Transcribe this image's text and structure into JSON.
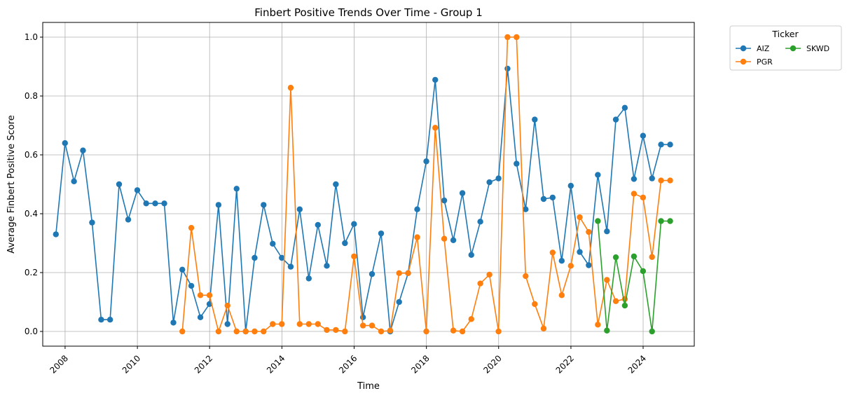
{
  "chart_data": {
    "type": "line",
    "title": "Finbert Positive Trends Over Time - Group 1",
    "xlabel": "Time",
    "ylabel": "Average Finbert Positive Score",
    "x_ticks": [
      "2008",
      "2010",
      "2012",
      "2014",
      "2016",
      "2018",
      "2020",
      "2022",
      "2024"
    ],
    "y_ticks": [
      "0.0",
      "0.2",
      "0.4",
      "0.6",
      "0.8",
      "1.0"
    ],
    "xlim": [
      "2007-05-20",
      "2025-06-01"
    ],
    "ylim": [
      -0.05,
      1.05
    ],
    "grid": true,
    "legend": {
      "title": "Ticker",
      "placement": "outside-top-right"
    },
    "series": [
      {
        "name": "AIZ",
        "color": "#1f77b4",
        "points": [
          [
            "2007-09-30",
            0.33
          ],
          [
            "2007-12-31",
            0.64
          ],
          [
            "2008-03-31",
            0.51
          ],
          [
            "2008-06-30",
            0.615
          ],
          [
            "2008-09-30",
            0.37
          ],
          [
            "2008-12-31",
            0.04
          ],
          [
            "2009-03-31",
            0.04
          ],
          [
            "2009-06-30",
            0.5
          ],
          [
            "2009-09-30",
            0.38
          ],
          [
            "2009-12-31",
            0.48
          ],
          [
            "2010-03-31",
            0.435
          ],
          [
            "2010-06-30",
            0.435
          ],
          [
            "2010-09-30",
            0.435
          ],
          [
            "2010-12-31",
            0.03
          ],
          [
            "2011-03-31",
            0.21
          ],
          [
            "2011-06-30",
            0.155
          ],
          [
            "2011-09-30",
            0.048
          ],
          [
            "2011-12-31",
            0.093
          ],
          [
            "2012-03-31",
            0.43
          ],
          [
            "2012-06-30",
            0.025
          ],
          [
            "2012-09-30",
            0.485
          ],
          [
            "2012-12-31",
            0.0
          ],
          [
            "2013-03-31",
            0.25
          ],
          [
            "2013-06-30",
            0.43
          ],
          [
            "2013-09-30",
            0.298
          ],
          [
            "2013-12-31",
            0.25
          ],
          [
            "2014-03-31",
            0.22
          ],
          [
            "2014-06-30",
            0.415
          ],
          [
            "2014-09-30",
            0.18
          ],
          [
            "2014-12-31",
            0.362
          ],
          [
            "2015-03-31",
            0.223
          ],
          [
            "2015-06-30",
            0.5
          ],
          [
            "2015-09-30",
            0.3
          ],
          [
            "2015-12-31",
            0.365
          ],
          [
            "2016-03-31",
            0.048
          ],
          [
            "2016-06-30",
            0.195
          ],
          [
            "2016-09-30",
            0.333
          ],
          [
            "2016-12-31",
            0.0
          ],
          [
            "2017-03-31",
            0.1
          ],
          [
            "2017-06-30",
            0.198
          ],
          [
            "2017-09-30",
            0.415
          ],
          [
            "2017-12-31",
            0.578
          ],
          [
            "2018-03-31",
            0.855
          ],
          [
            "2018-06-30",
            0.445
          ],
          [
            "2018-09-30",
            0.31
          ],
          [
            "2018-12-31",
            0.47
          ],
          [
            "2019-03-31",
            0.26
          ],
          [
            "2019-06-30",
            0.373
          ],
          [
            "2019-09-30",
            0.507
          ],
          [
            "2019-12-31",
            0.52
          ],
          [
            "2020-03-31",
            0.893
          ],
          [
            "2020-06-30",
            0.57
          ],
          [
            "2020-09-30",
            0.415
          ],
          [
            "2020-12-31",
            0.72
          ],
          [
            "2021-03-31",
            0.45
          ],
          [
            "2021-06-30",
            0.455
          ],
          [
            "2021-09-30",
            0.24
          ],
          [
            "2021-12-31",
            0.495
          ],
          [
            "2022-03-31",
            0.27
          ],
          [
            "2022-06-30",
            0.225
          ],
          [
            "2022-09-30",
            0.532
          ],
          [
            "2022-12-31",
            0.34
          ],
          [
            "2023-03-31",
            0.72
          ],
          [
            "2023-06-30",
            0.76
          ],
          [
            "2023-09-30",
            0.518
          ],
          [
            "2023-12-31",
            0.665
          ],
          [
            "2024-03-31",
            0.52
          ],
          [
            "2024-06-30",
            0.635
          ],
          [
            "2024-09-30",
            0.635
          ]
        ]
      },
      {
        "name": "PGR",
        "color": "#ff7f0e",
        "points": [
          [
            "2011-03-31",
            0.0
          ],
          [
            "2011-06-30",
            0.352
          ],
          [
            "2011-09-30",
            0.123
          ],
          [
            "2011-12-31",
            0.123
          ],
          [
            "2012-03-31",
            0.0
          ],
          [
            "2012-06-30",
            0.088
          ],
          [
            "2012-09-30",
            0.0
          ],
          [
            "2012-12-31",
            0.0
          ],
          [
            "2013-03-31",
            0.0
          ],
          [
            "2013-06-30",
            0.0
          ],
          [
            "2013-09-30",
            0.025
          ],
          [
            "2013-12-31",
            0.025
          ],
          [
            "2014-03-31",
            0.828
          ],
          [
            "2014-06-30",
            0.025
          ],
          [
            "2014-09-30",
            0.025
          ],
          [
            "2014-12-31",
            0.025
          ],
          [
            "2015-03-31",
            0.005
          ],
          [
            "2015-06-30",
            0.005
          ],
          [
            "2015-09-30",
            0.0
          ],
          [
            "2015-12-31",
            0.255
          ],
          [
            "2016-03-31",
            0.02
          ],
          [
            "2016-06-30",
            0.02
          ],
          [
            "2016-09-30",
            0.0
          ],
          [
            "2016-12-31",
            0.003
          ],
          [
            "2017-03-31",
            0.198
          ],
          [
            "2017-06-30",
            0.198
          ],
          [
            "2017-09-30",
            0.32
          ],
          [
            "2017-12-31",
            0.0
          ],
          [
            "2018-03-31",
            0.692
          ],
          [
            "2018-06-30",
            0.315
          ],
          [
            "2018-09-30",
            0.003
          ],
          [
            "2018-12-31",
            0.0
          ],
          [
            "2019-03-31",
            0.042
          ],
          [
            "2019-06-30",
            0.163
          ],
          [
            "2019-09-30",
            0.193
          ],
          [
            "2019-12-31",
            0.0
          ],
          [
            "2020-03-31",
            1.0
          ],
          [
            "2020-06-30",
            1.0
          ],
          [
            "2020-09-30",
            0.188
          ],
          [
            "2020-12-31",
            0.093
          ],
          [
            "2021-03-31",
            0.01
          ],
          [
            "2021-06-30",
            0.268
          ],
          [
            "2021-09-30",
            0.123
          ],
          [
            "2021-12-31",
            0.223
          ],
          [
            "2022-03-31",
            0.388
          ],
          [
            "2022-06-30",
            0.338
          ],
          [
            "2022-09-30",
            0.023
          ],
          [
            "2022-12-31",
            0.175
          ],
          [
            "2023-03-31",
            0.103
          ],
          [
            "2023-06-30",
            0.11
          ],
          [
            "2023-09-30",
            0.468
          ],
          [
            "2023-12-31",
            0.455
          ],
          [
            "2024-03-31",
            0.253
          ],
          [
            "2024-06-30",
            0.513
          ],
          [
            "2024-09-30",
            0.513
          ]
        ]
      },
      {
        "name": "SKWD",
        "color": "#2ca02c",
        "points": [
          [
            "2022-09-30",
            0.375
          ],
          [
            "2022-12-31",
            0.003
          ],
          [
            "2023-03-31",
            0.252
          ],
          [
            "2023-06-30",
            0.088
          ],
          [
            "2023-09-30",
            0.255
          ],
          [
            "2023-12-31",
            0.205
          ],
          [
            "2024-03-31",
            0.0
          ],
          [
            "2024-06-30",
            0.375
          ],
          [
            "2024-09-30",
            0.375
          ]
        ]
      }
    ]
  }
}
